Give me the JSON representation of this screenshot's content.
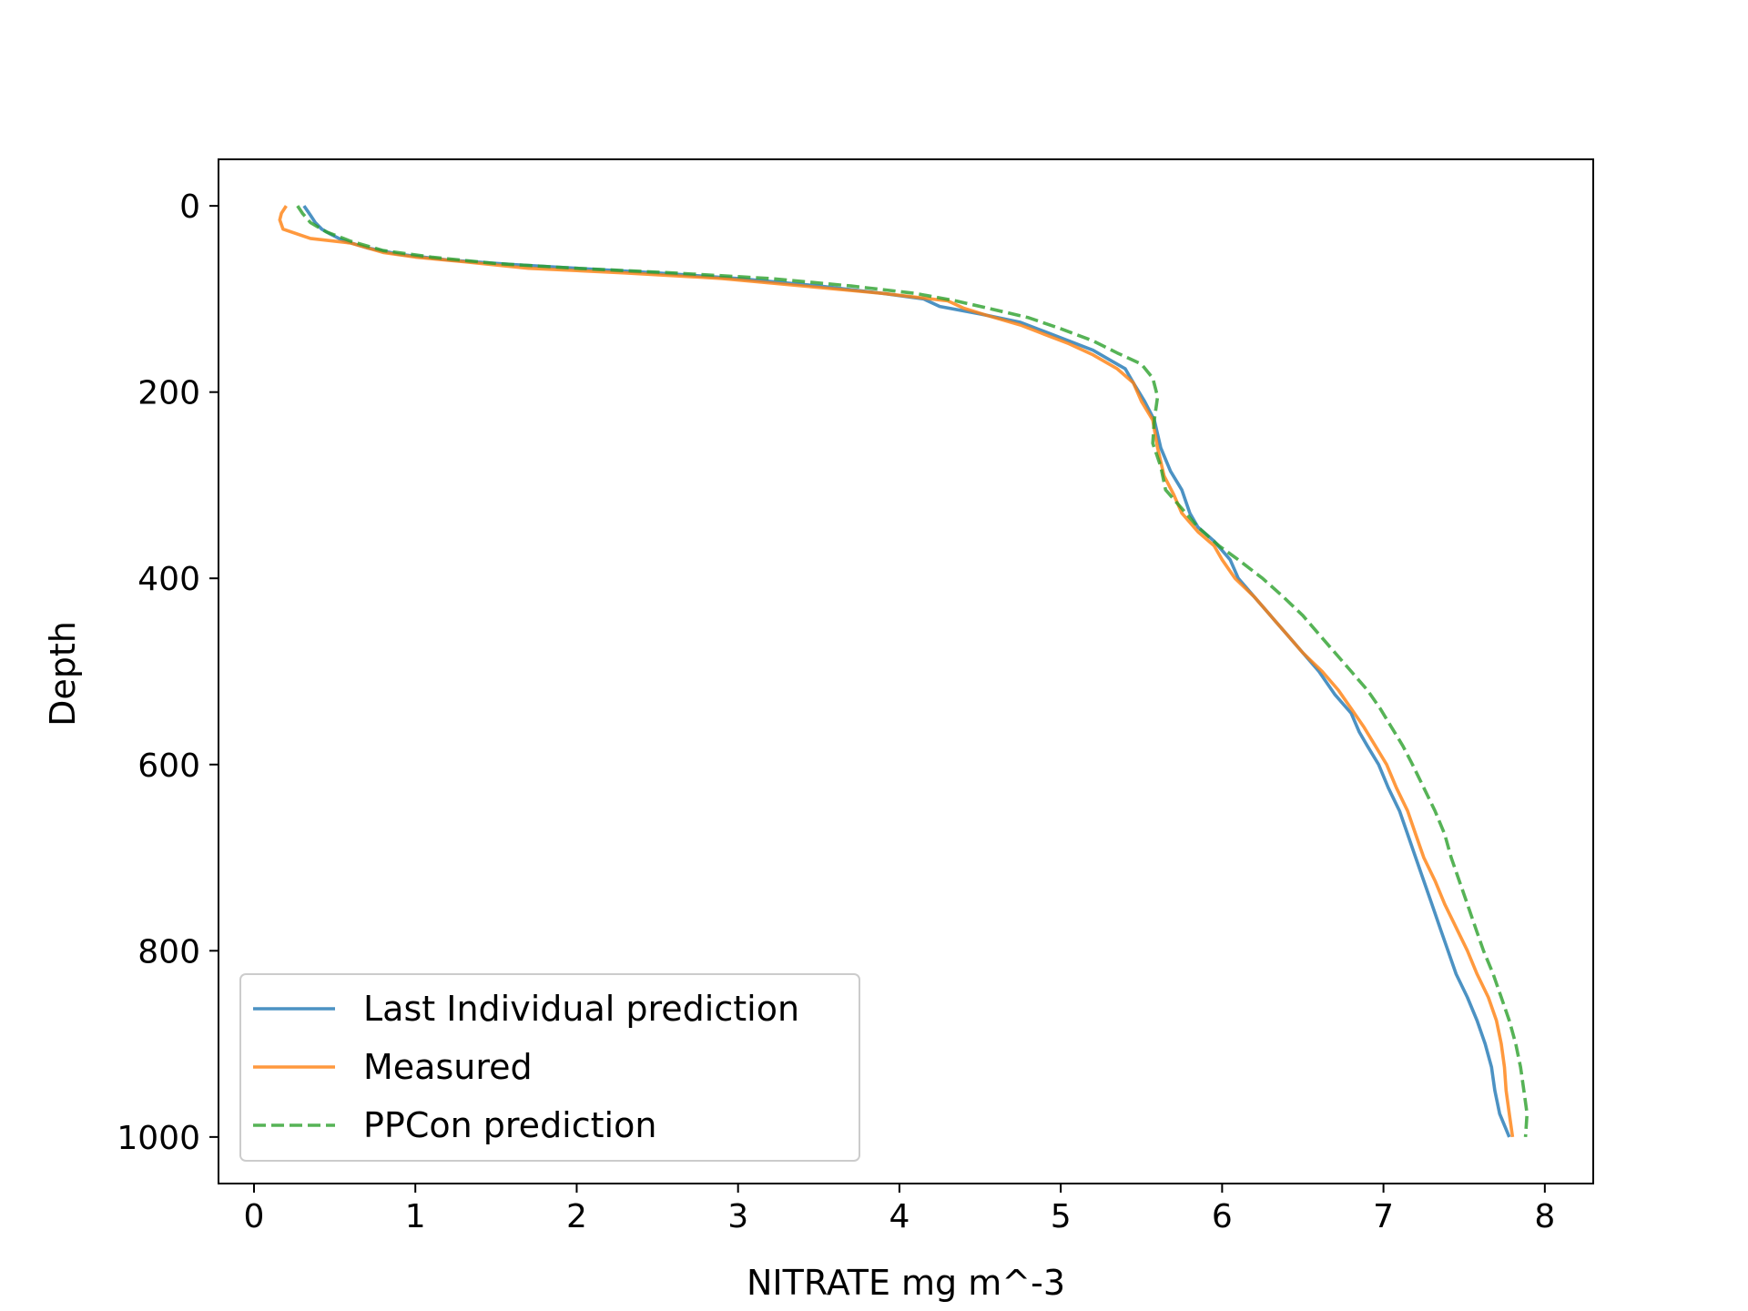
{
  "chart_data": {
    "type": "line",
    "xlabel": "NITRATE mg m^-3",
    "ylabel": "Depth",
    "xlim": [
      -0.22,
      8.3
    ],
    "ylim": [
      1050,
      -50
    ],
    "y_inverted": true,
    "grid": false,
    "legend_position": "lower-left",
    "x_ticks": [
      "0",
      "1",
      "2",
      "3",
      "4",
      "5",
      "6",
      "7",
      "8"
    ],
    "x_tick_values": [
      0,
      1,
      2,
      3,
      4,
      5,
      6,
      7,
      8
    ],
    "y_ticks": [
      "0",
      "200",
      "400",
      "600",
      "800",
      "1000"
    ],
    "y_tick_values": [
      0,
      200,
      400,
      600,
      800,
      1000
    ],
    "series": [
      {
        "name": "Last Individual prediction",
        "color": "#1f77b4",
        "style": "solid",
        "points": [
          [
            0.31,
            0
          ],
          [
            0.33,
            5
          ],
          [
            0.35,
            10
          ],
          [
            0.38,
            18
          ],
          [
            0.42,
            25
          ],
          [
            0.47,
            30
          ],
          [
            0.55,
            37
          ],
          [
            0.7,
            45
          ],
          [
            0.9,
            52
          ],
          [
            1.2,
            58
          ],
          [
            1.6,
            63
          ],
          [
            2.0,
            67
          ],
          [
            2.5,
            72
          ],
          [
            3.0,
            78
          ],
          [
            3.5,
            86
          ],
          [
            3.9,
            94
          ],
          [
            4.15,
            100
          ],
          [
            4.25,
            108
          ],
          [
            4.5,
            116
          ],
          [
            4.75,
            125
          ],
          [
            4.9,
            135
          ],
          [
            5.05,
            145
          ],
          [
            5.2,
            155
          ],
          [
            5.3,
            165
          ],
          [
            5.4,
            175
          ],
          [
            5.45,
            190
          ],
          [
            5.52,
            210
          ],
          [
            5.58,
            230
          ],
          [
            5.62,
            260
          ],
          [
            5.68,
            285
          ],
          [
            5.75,
            305
          ],
          [
            5.8,
            330
          ],
          [
            5.85,
            345
          ],
          [
            5.95,
            360
          ],
          [
            6.05,
            380
          ],
          [
            6.1,
            400
          ],
          [
            6.2,
            420
          ],
          [
            6.3,
            440
          ],
          [
            6.4,
            460
          ],
          [
            6.5,
            480
          ],
          [
            6.6,
            500
          ],
          [
            6.7,
            525
          ],
          [
            6.8,
            545
          ],
          [
            6.85,
            565
          ],
          [
            6.9,
            580
          ],
          [
            6.97,
            600
          ],
          [
            7.03,
            625
          ],
          [
            7.1,
            650
          ],
          [
            7.15,
            675
          ],
          [
            7.2,
            700
          ],
          [
            7.25,
            725
          ],
          [
            7.3,
            750
          ],
          [
            7.35,
            775
          ],
          [
            7.4,
            800
          ],
          [
            7.45,
            825
          ],
          [
            7.52,
            850
          ],
          [
            7.58,
            875
          ],
          [
            7.63,
            900
          ],
          [
            7.67,
            925
          ],
          [
            7.69,
            950
          ],
          [
            7.72,
            975
          ],
          [
            7.78,
            1000
          ]
        ]
      },
      {
        "name": "Measured",
        "color": "#ff7f0e",
        "style": "solid",
        "points": [
          [
            0.2,
            0
          ],
          [
            0.17,
            8
          ],
          [
            0.16,
            15
          ],
          [
            0.18,
            25
          ],
          [
            0.35,
            35
          ],
          [
            0.6,
            40
          ],
          [
            0.7,
            45
          ],
          [
            0.8,
            50
          ],
          [
            1.0,
            55
          ],
          [
            1.3,
            60
          ],
          [
            1.7,
            67
          ],
          [
            2.3,
            72
          ],
          [
            2.9,
            78
          ],
          [
            3.4,
            86
          ],
          [
            3.9,
            94
          ],
          [
            4.3,
            102
          ],
          [
            4.4,
            110
          ],
          [
            4.55,
            118
          ],
          [
            4.75,
            128
          ],
          [
            4.9,
            138
          ],
          [
            5.05,
            148
          ],
          [
            5.2,
            160
          ],
          [
            5.35,
            175
          ],
          [
            5.45,
            190
          ],
          [
            5.5,
            210
          ],
          [
            5.57,
            230
          ],
          [
            5.6,
            260
          ],
          [
            5.64,
            290
          ],
          [
            5.7,
            310
          ],
          [
            5.75,
            330
          ],
          [
            5.85,
            350
          ],
          [
            5.95,
            365
          ],
          [
            6.0,
            380
          ],
          [
            6.08,
            400
          ],
          [
            6.2,
            420
          ],
          [
            6.3,
            440
          ],
          [
            6.4,
            460
          ],
          [
            6.5,
            480
          ],
          [
            6.62,
            500
          ],
          [
            6.72,
            520
          ],
          [
            6.8,
            540
          ],
          [
            6.88,
            560
          ],
          [
            6.95,
            580
          ],
          [
            7.02,
            600
          ],
          [
            7.08,
            625
          ],
          [
            7.15,
            650
          ],
          [
            7.2,
            675
          ],
          [
            7.25,
            700
          ],
          [
            7.32,
            725
          ],
          [
            7.38,
            750
          ],
          [
            7.45,
            775
          ],
          [
            7.52,
            800
          ],
          [
            7.58,
            825
          ],
          [
            7.65,
            850
          ],
          [
            7.7,
            875
          ],
          [
            7.73,
            900
          ],
          [
            7.75,
            925
          ],
          [
            7.76,
            950
          ],
          [
            7.78,
            975
          ],
          [
            7.8,
            1000
          ]
        ]
      },
      {
        "name": "PPCon prediction",
        "color": "#2ca02c",
        "style": "dashed",
        "points": [
          [
            0.27,
            0
          ],
          [
            0.3,
            8
          ],
          [
            0.35,
            18
          ],
          [
            0.45,
            28
          ],
          [
            0.6,
            38
          ],
          [
            0.8,
            48
          ],
          [
            1.1,
            55
          ],
          [
            1.5,
            62
          ],
          [
            2.0,
            67
          ],
          [
            2.6,
            72
          ],
          [
            3.2,
            78
          ],
          [
            3.7,
            86
          ],
          [
            4.1,
            94
          ],
          [
            4.35,
            102
          ],
          [
            4.55,
            110
          ],
          [
            4.8,
            120
          ],
          [
            5.0,
            132
          ],
          [
            5.2,
            145
          ],
          [
            5.35,
            158
          ],
          [
            5.5,
            170
          ],
          [
            5.57,
            185
          ],
          [
            5.6,
            205
          ],
          [
            5.58,
            230
          ],
          [
            5.57,
            255
          ],
          [
            5.62,
            280
          ],
          [
            5.65,
            305
          ],
          [
            5.75,
            325
          ],
          [
            5.85,
            345
          ],
          [
            5.98,
            365
          ],
          [
            6.1,
            380
          ],
          [
            6.25,
            400
          ],
          [
            6.38,
            420
          ],
          [
            6.5,
            440
          ],
          [
            6.6,
            460
          ],
          [
            6.7,
            480
          ],
          [
            6.8,
            500
          ],
          [
            6.9,
            520
          ],
          [
            6.98,
            540
          ],
          [
            7.05,
            560
          ],
          [
            7.12,
            580
          ],
          [
            7.18,
            600
          ],
          [
            7.25,
            625
          ],
          [
            7.32,
            650
          ],
          [
            7.38,
            675
          ],
          [
            7.42,
            700
          ],
          [
            7.47,
            725
          ],
          [
            7.52,
            750
          ],
          [
            7.57,
            775
          ],
          [
            7.62,
            800
          ],
          [
            7.68,
            825
          ],
          [
            7.73,
            850
          ],
          [
            7.78,
            875
          ],
          [
            7.82,
            900
          ],
          [
            7.85,
            925
          ],
          [
            7.87,
            950
          ],
          [
            7.89,
            975
          ],
          [
            7.88,
            1000
          ]
        ]
      }
    ]
  }
}
